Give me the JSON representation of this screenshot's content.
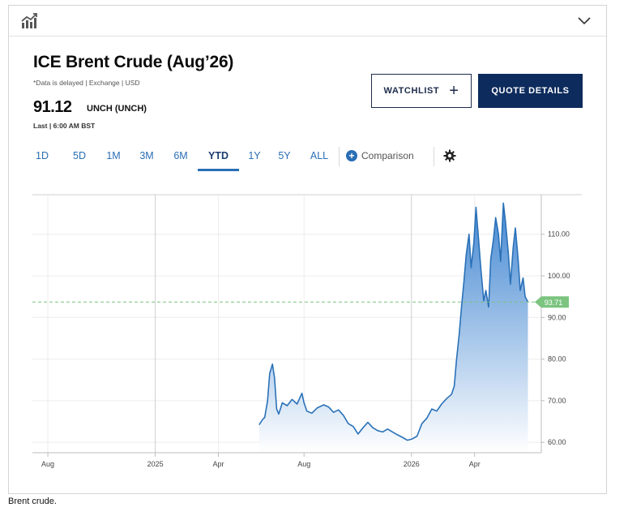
{
  "instrument": {
    "title": "ICE Brent Crude (Aug’26)",
    "subtitle": "*Data is delayed | Exchange | USD",
    "price": "91.12",
    "change": "UNCH (UNCH)",
    "last": "Last | 6:00 AM BST"
  },
  "buttons": {
    "watchlist": "WATCHLIST",
    "watchlist_plus": "+",
    "quote_details": "QUOTE DETAILS"
  },
  "range_tabs": [
    {
      "label": "1D",
      "active": false
    },
    {
      "label": "5D",
      "active": false
    },
    {
      "label": "1M",
      "active": false
    },
    {
      "label": "3M",
      "active": false
    },
    {
      "label": "6M",
      "active": false
    },
    {
      "label": "YTD",
      "active": true
    },
    {
      "label": "1Y",
      "active": false
    },
    {
      "label": "5Y",
      "active": false
    },
    {
      "label": "ALL",
      "active": false
    }
  ],
  "comparison": {
    "plus": "+",
    "label": "Comparison"
  },
  "icons": {
    "chart_type": "chart-type-icon",
    "collapse": "chevron-down-icon",
    "settings": "gear-icon",
    "comparison": "plus-circle-icon"
  },
  "colors": {
    "line": "#2a71b8",
    "area_top": "#3b82d0",
    "area_bottom": "#ffffff",
    "current_label": "#7cc47f",
    "navy": "#0d2b5c",
    "link": "#2a6eb6"
  },
  "chart_data": {
    "type": "area",
    "title": "",
    "xlabel": "",
    "ylabel": "",
    "y_ticks": [
      "60.00",
      "70.00",
      "80.00",
      "90.00",
      "100.00",
      "110.00"
    ],
    "ylim": [
      57.5,
      119.5
    ],
    "x_ticks": [
      {
        "label": "Aug",
        "date": "2024-08-01"
      },
      {
        "label": "2025",
        "date": "2025-01-01"
      },
      {
        "label": "Apr",
        "date": "2025-04-01"
      },
      {
        "label": "Aug",
        "date": "2025-08-01"
      },
      {
        "label": "2026",
        "date": "2026-01-01"
      },
      {
        "label": "Apr",
        "date": "2026-04-01"
      }
    ],
    "xlim": [
      "2024-07-10",
      "2026-07-05"
    ],
    "current_value": "93.71",
    "current_value_num": 93.71,
    "grid": true,
    "x": [
      "2025-05-29",
      "2025-06-03",
      "2025-06-06",
      "2025-06-10",
      "2025-06-13",
      "2025-06-17",
      "2025-06-20",
      "2025-06-23",
      "2025-06-26",
      "2025-07-01",
      "2025-07-08",
      "2025-07-15",
      "2025-07-22",
      "2025-07-29",
      "2025-08-01",
      "2025-08-05",
      "2025-08-12",
      "2025-08-20",
      "2025-08-29",
      "2025-09-05",
      "2025-09-12",
      "2025-09-19",
      "2025-09-26",
      "2025-10-03",
      "2025-10-10",
      "2025-10-17",
      "2025-10-24",
      "2025-10-31",
      "2025-11-07",
      "2025-11-14",
      "2025-11-21",
      "2025-11-28",
      "2025-12-05",
      "2025-12-12",
      "2025-12-19",
      "2025-12-26",
      "2026-01-02",
      "2026-01-09",
      "2026-01-16",
      "2026-01-23",
      "2026-01-30",
      "2026-02-06",
      "2026-02-13",
      "2026-02-20",
      "2026-02-27",
      "2026-03-03",
      "2026-03-06",
      "2026-03-10",
      "2026-03-13",
      "2026-03-17",
      "2026-03-20",
      "2026-03-24",
      "2026-03-27",
      "2026-03-31",
      "2026-04-03",
      "2026-04-07",
      "2026-04-10",
      "2026-04-14",
      "2026-04-17",
      "2026-04-21",
      "2026-04-24",
      "2026-04-28",
      "2026-05-01",
      "2026-05-05",
      "2026-05-08",
      "2026-05-12",
      "2026-05-15",
      "2026-05-19",
      "2026-05-22",
      "2026-05-26",
      "2026-05-29",
      "2026-06-02",
      "2026-06-05",
      "2026-06-09",
      "2026-06-12",
      "2026-06-16"
    ],
    "values": [
      64.2,
      65.5,
      66.0,
      70.0,
      76.5,
      78.8,
      75.5,
      68.0,
      66.8,
      69.5,
      68.8,
      70.3,
      69.2,
      71.8,
      69.5,
      67.5,
      67.0,
      68.3,
      69.0,
      68.5,
      67.2,
      67.8,
      66.5,
      64.5,
      63.8,
      62.0,
      63.5,
      64.8,
      63.5,
      62.8,
      62.5,
      63.2,
      62.5,
      61.8,
      61.2,
      60.5,
      60.8,
      61.5,
      64.5,
      65.8,
      68.0,
      67.5,
      69.2,
      70.5,
      71.5,
      73.5,
      79.5,
      86.0,
      92.0,
      99.0,
      105.0,
      110.0,
      102.0,
      108.0,
      116.5,
      108.0,
      101.5,
      94.0,
      96.5,
      92.5,
      104.0,
      109.0,
      114.0,
      110.0,
      103.5,
      117.5,
      113.0,
      105.5,
      98.0,
      107.0,
      111.5,
      104.0,
      96.5,
      99.5,
      95.0,
      93.71
    ]
  },
  "caption": "Brent crude."
}
